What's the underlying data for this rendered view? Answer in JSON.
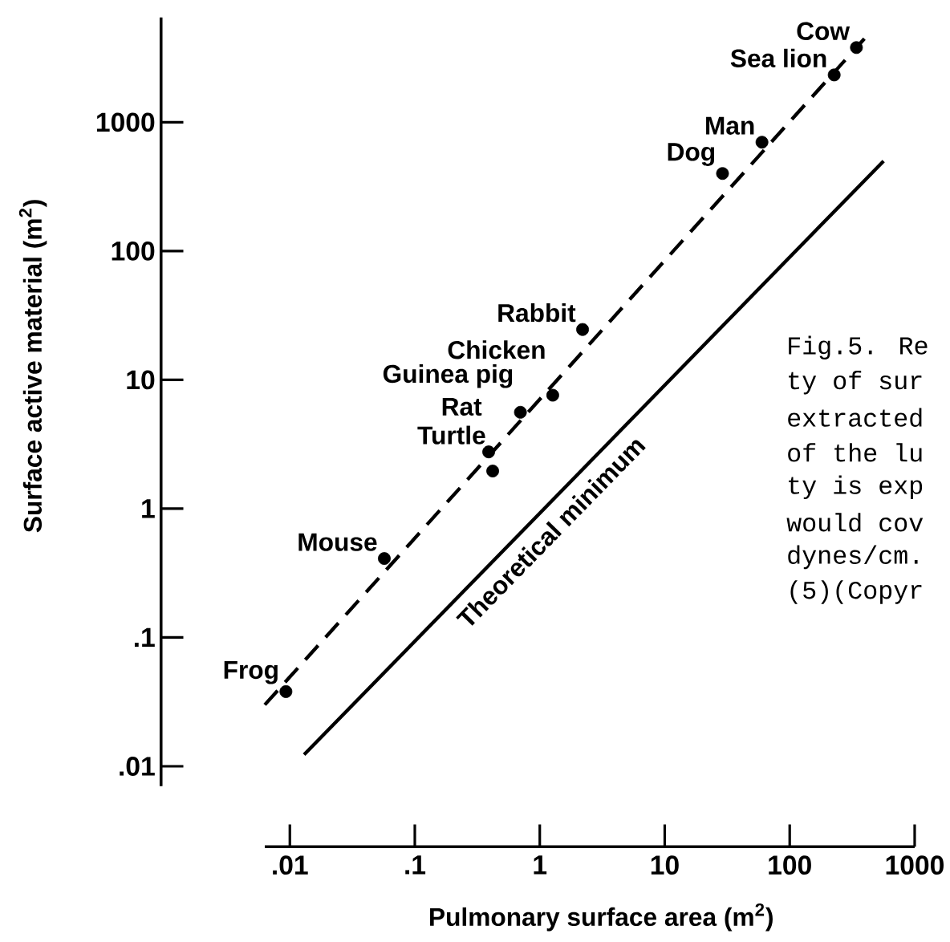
{
  "chart_data": {
    "type": "scatter",
    "xlabel": "Pulmonary surface area (m$^{2}$)",
    "ylabel": "Surface active material (m$^{2}$)",
    "log": "xy",
    "xlim": [
      0.0063,
      1000
    ],
    "ylim": [
      0.007,
      6500
    ],
    "xticks": [
      {
        "value": 0.01,
        "label": ".01"
      },
      {
        "value": 0.1,
        "label": ".1"
      },
      1,
      10,
      100,
      1000
    ],
    "yticks": [
      {
        "value": 0.01,
        "label": ".01"
      },
      {
        "value": 0.1,
        "label": ".1"
      },
      1,
      10,
      100,
      1000
    ],
    "grid": false,
    "legend": false,
    "series": [
      {
        "type": "scatter",
        "marker": "circle",
        "color": "#000000",
        "x": [
          0.0093,
          0.057,
          0.42,
          0.39,
          0.7,
          1.27,
          2.2,
          29,
          60,
          227,
          342
        ],
        "values": [
          0.038,
          0.41,
          1.96,
          2.76,
          5.6,
          7.6,
          24.6,
          400,
          700,
          2330,
          3800
        ]
      },
      {
        "type": "line",
        "marker": "none",
        "line_style": "dashed",
        "color": "#000000",
        "x": [
          0.0063,
          396
        ],
        "values": [
          0.03,
          4450
        ]
      },
      {
        "type": "line",
        "marker": "none",
        "name": "Theoretical minimum",
        "line_style": "solid",
        "color": "#000000",
        "x": [
          0.013,
          564
        ],
        "values": [
          0.0123,
          500
        ]
      }
    ],
    "annotations": [
      {
        "text": "Frog",
        "x": 0.0093,
        "y": 0.038
      },
      {
        "text": "Mouse",
        "x": 0.057,
        "y": 0.41
      },
      {
        "text": "Turtle",
        "x": 0.42,
        "y": 1.96
      },
      {
        "text": "Rat",
        "x": 0.39,
        "y": 2.76
      },
      {
        "text": "Guinea pig",
        "x": 0.7,
        "y": 5.6
      },
      {
        "text": "Chicken",
        "x": 1.27,
        "y": 7.6
      },
      {
        "text": "Rabbit",
        "x": 2.2,
        "y": 24.6
      },
      {
        "text": "Dog",
        "x": 29,
        "y": 400
      },
      {
        "text": "Man",
        "x": 60,
        "y": 700
      },
      {
        "text": "Sea lion",
        "x": 227,
        "y": 2330
      },
      {
        "text": "Cow",
        "x": 342,
        "y": 3800
      },
      "Fig.5. Re",
      "ty of sur",
      "extracted",
      "of the lu",
      "ty is exp",
      "would cov",
      "dynes/cm.",
      "(5)(Copyr"
    ]
  }
}
